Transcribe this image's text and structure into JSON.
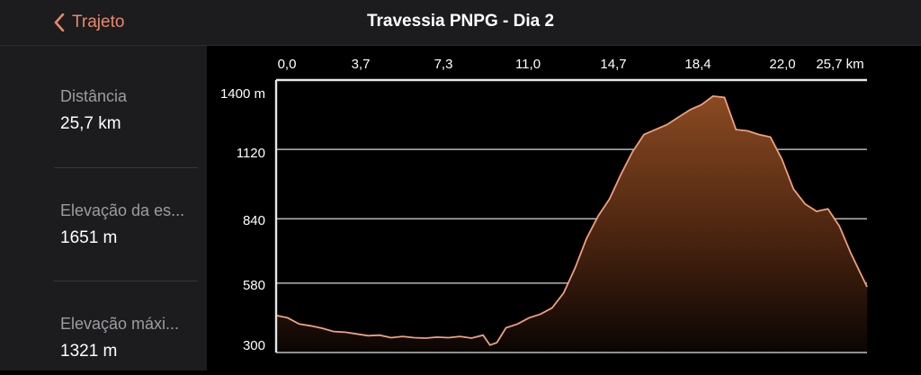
{
  "header": {
    "back_label": "Trajeto",
    "title": "Travessia PNPG - Dia 2"
  },
  "stats": [
    {
      "label": "Distância",
      "value": "25,7 km"
    },
    {
      "label": "Elevação da es...",
      "value": "1651 m"
    },
    {
      "label": "Elevação máxi...",
      "value": "1321 m"
    }
  ],
  "colors": {
    "accent": "#e8896b",
    "panel": "#1c1c1e",
    "fill_top": "#8a4a22"
  },
  "chart_data": {
    "type": "area",
    "x_ticks": [
      "0,0",
      "3,7",
      "7,3",
      "11,0",
      "14,7",
      "18,4",
      "22,0",
      "25,7 km"
    ],
    "y_ticks": [
      "1400 m",
      "1120",
      "840",
      "580",
      "300"
    ],
    "xlim": [
      0,
      25.7
    ],
    "ylim": [
      300,
      1400
    ],
    "grid": true,
    "x": [
      0,
      0.5,
      1.0,
      1.5,
      2.0,
      2.5,
      3.0,
      3.5,
      4.0,
      4.5,
      5.0,
      5.5,
      6.0,
      6.5,
      7.0,
      7.5,
      8.0,
      8.5,
      9.0,
      9.3,
      9.6,
      10.0,
      10.5,
      11.0,
      11.5,
      12.0,
      12.5,
      13.0,
      13.5,
      14.0,
      14.5,
      15.0,
      15.5,
      16.0,
      16.5,
      17.0,
      17.5,
      18.0,
      18.5,
      19.0,
      19.5,
      20.0,
      20.5,
      21.0,
      21.5,
      22.0,
      22.5,
      23.0,
      23.5,
      24.0,
      24.5,
      25.0,
      25.7
    ],
    "y": [
      450,
      440,
      415,
      408,
      398,
      385,
      382,
      375,
      368,
      370,
      360,
      365,
      360,
      358,
      362,
      360,
      365,
      358,
      370,
      330,
      340,
      400,
      415,
      440,
      455,
      480,
      540,
      640,
      760,
      850,
      920,
      1020,
      1110,
      1180,
      1200,
      1220,
      1250,
      1280,
      1300,
      1335,
      1330,
      1200,
      1195,
      1180,
      1170,
      1080,
      960,
      900,
      870,
      880,
      810,
      700,
      565
    ]
  }
}
